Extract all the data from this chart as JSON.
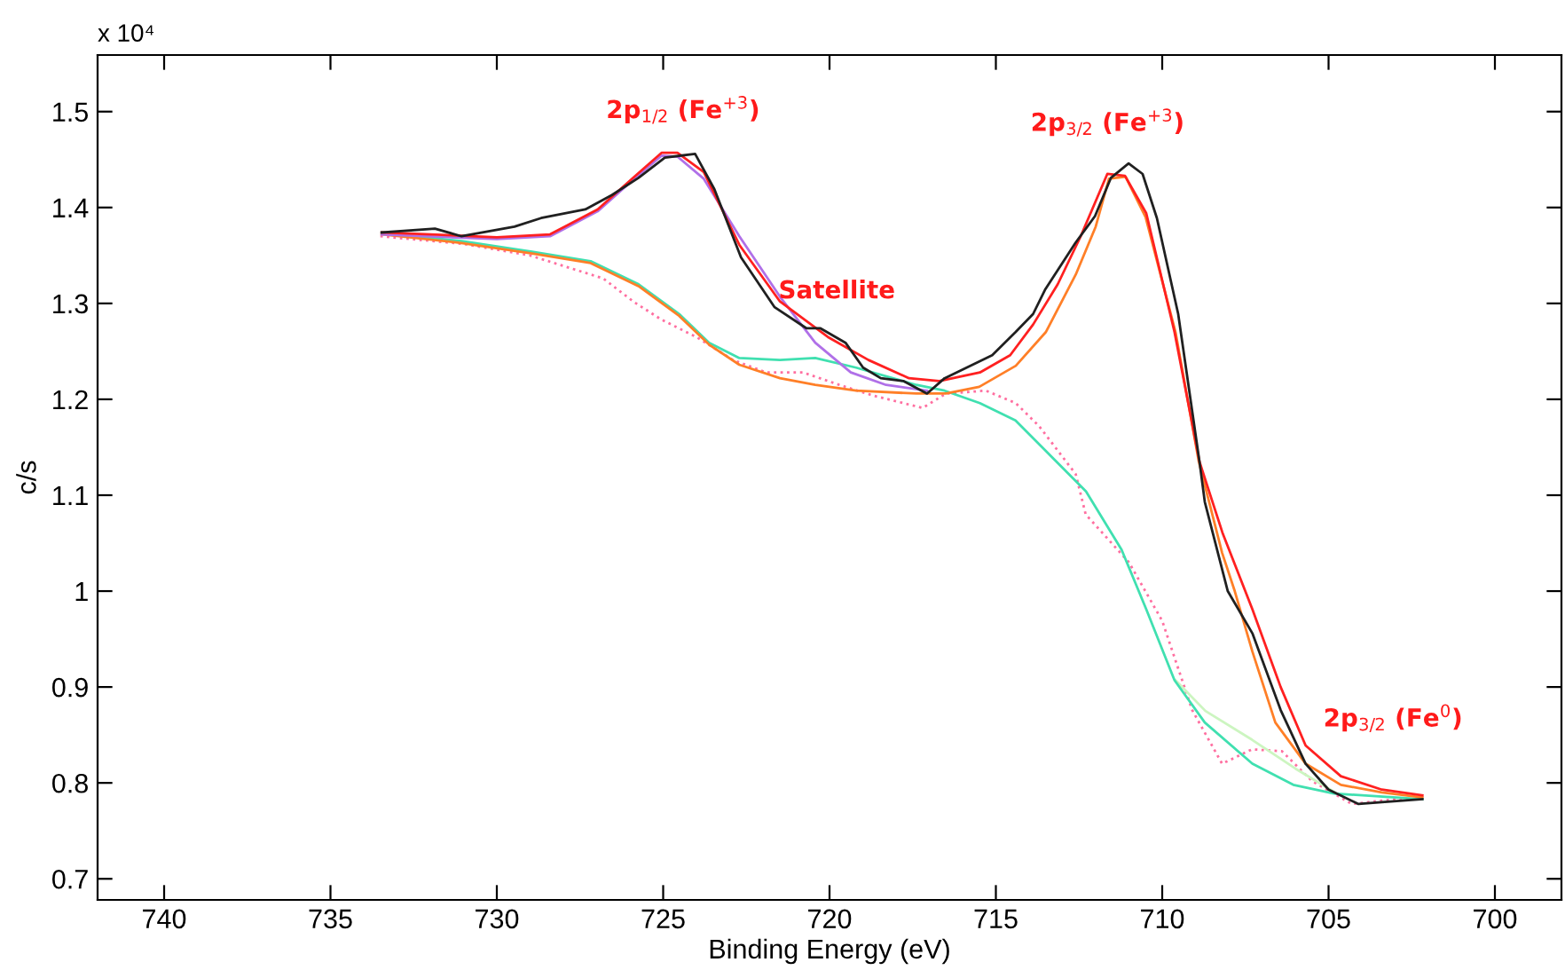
{
  "chart_data": {
    "type": "line",
    "xlabel": "Binding Energy (eV)",
    "ylabel": "c/s",
    "xlim": [
      742,
      698
    ],
    "ylim": [
      0.678,
      1.559
    ],
    "xticks": [
      740,
      735,
      730,
      725,
      720,
      715,
      710,
      705,
      700
    ],
    "yticks": [
      0.7,
      0.8,
      0.9,
      1,
      1.1,
      1.2,
      1.3,
      1.4,
      1.5
    ],
    "grid": false,
    "legend": false,
    "marker": "none",
    "annotations": [
      "x 10⁴",
      "2p$_{1/2}$ (Fe$^{+3}$)",
      "Satellite",
      "2p$_{3/2}$ (Fe$^{+3}$)",
      "2p$_{3/2}$ (Fe$^{0}$)"
    ],
    "series": [
      {
        "color": "#ff6fa0",
        "line_style": "dotted",
        "x": [
          733.5,
          731,
          729,
          726.8,
          725.9,
          725.05,
          724.0,
          722.9,
          721.9,
          720.8,
          719.7,
          718.7,
          717.2,
          716.5,
          715.3,
          714.4,
          713.7,
          712.6,
          712.3,
          711.0,
          710.0,
          709.1,
          708.2,
          707.3,
          706.4,
          705.5,
          704.3,
          703.0,
          702.2
        ],
        "values": [
          1.37,
          1.362,
          1.35,
          1.326,
          1.302,
          1.283,
          1.265,
          1.241,
          1.228,
          1.228,
          1.215,
          1.204,
          1.191,
          1.206,
          1.209,
          1.196,
          1.172,
          1.122,
          1.08,
          1.03,
          0.969,
          0.876,
          0.82,
          0.835,
          0.833,
          0.802,
          0.778,
          0.783,
          0.783
        ]
      },
      {
        "color": "#ccf5c0",
        "x": [
          709.6,
          708.7,
          707.3,
          706.0,
          704.8
        ],
        "values": [
          0.907,
          0.875,
          0.845,
          0.815,
          0.79
        ]
      },
      {
        "color": "#40e0b0",
        "x": [
          733.46,
          731.06,
          728.94,
          727.18,
          725.74,
          724.52,
          723.62,
          722.71,
          721.49,
          720.43,
          719.2,
          717.39,
          716.54,
          715.48,
          714.41,
          713.35,
          712.29,
          711.22,
          710.48,
          709.63,
          708.72,
          707.29,
          706.06,
          704.84,
          702.18
        ],
        "values": [
          1.374,
          1.365,
          1.354,
          1.344,
          1.32,
          1.289,
          1.259,
          1.243,
          1.241,
          1.243,
          1.233,
          1.215,
          1.209,
          1.196,
          1.178,
          1.141,
          1.104,
          1.043,
          0.981,
          0.907,
          0.863,
          0.82,
          0.798,
          0.789,
          0.783
        ]
      },
      {
        "color": "#ff7f27",
        "x": [
          733.46,
          731.06,
          728.94,
          727.18,
          725.74,
          724.52,
          723.62,
          722.71,
          721.49,
          720.43,
          719.2,
          717.39,
          716.5,
          715.5,
          714.4,
          713.5,
          712.6,
          712.0,
          711.6,
          711.1,
          710.5,
          709.6,
          708.9,
          708.2,
          707.82,
          707.29,
          706.6,
          705.69,
          704.63,
          703.4,
          702.18
        ],
        "values": [
          1.372,
          1.363,
          1.352,
          1.342,
          1.318,
          1.287,
          1.257,
          1.236,
          1.222,
          1.215,
          1.209,
          1.206,
          1.206,
          1.213,
          1.235,
          1.27,
          1.33,
          1.38,
          1.43,
          1.432,
          1.39,
          1.27,
          1.135,
          1.04,
          1.0,
          0.937,
          0.863,
          0.82,
          0.798,
          0.79,
          0.785
        ]
      },
      {
        "color": "#b070e8",
        "x": [
          733.46,
          730.0,
          728.4,
          726.97,
          725.9,
          725.05,
          724.57,
          723.78,
          722.71,
          721.49,
          720.43,
          719.36,
          718.3,
          717.07
        ],
        "values": [
          1.372,
          1.367,
          1.37,
          1.396,
          1.429,
          1.454,
          1.453,
          1.43,
          1.37,
          1.307,
          1.259,
          1.228,
          1.215,
          1.209
        ]
      },
      {
        "color": "#ff2020",
        "x": [
          733.46,
          730.0,
          728.4,
          726.97,
          725.9,
          725.05,
          724.57,
          723.78,
          722.71,
          721.49,
          720.05,
          718.83,
          717.61,
          716.7,
          715.48,
          714.57,
          713.88,
          713.14,
          712.45,
          711.65,
          711.12,
          710.48,
          709.63,
          708.88,
          708.19,
          707.29,
          706.44,
          705.69,
          704.63,
          703.4,
          702.18
        ],
        "values": [
          1.374,
          1.369,
          1.372,
          1.398,
          1.431,
          1.457,
          1.457,
          1.437,
          1.361,
          1.302,
          1.265,
          1.241,
          1.222,
          1.219,
          1.228,
          1.246,
          1.278,
          1.32,
          1.37,
          1.435,
          1.433,
          1.394,
          1.27,
          1.135,
          1.061,
          0.981,
          0.9,
          0.839,
          0.807,
          0.793,
          0.787
        ]
      },
      {
        "color": "#202020",
        "x": [
          733.46,
          731.86,
          731.06,
          729.47,
          728.67,
          727.34,
          726.54,
          725.74,
          724.95,
          724.04,
          723.46,
          722.66,
          721.65,
          720.69,
          720.27,
          719.52,
          718.99,
          718.46,
          717.77,
          717.07,
          716.54,
          715.11,
          714.41,
          713.88,
          713.51,
          712.61,
          712.02,
          711.54,
          711.01,
          710.59,
          710.16,
          709.52,
          708.88,
          708.72,
          708.03,
          707.29,
          706.44,
          705.69,
          705.0,
          704.1,
          703.4,
          702.18
        ],
        "values": [
          1.374,
          1.378,
          1.37,
          1.38,
          1.389,
          1.398,
          1.413,
          1.431,
          1.452,
          1.456,
          1.419,
          1.348,
          1.296,
          1.274,
          1.274,
          1.259,
          1.233,
          1.222,
          1.219,
          1.206,
          1.222,
          1.246,
          1.27,
          1.289,
          1.315,
          1.363,
          1.391,
          1.431,
          1.446,
          1.435,
          1.389,
          1.289,
          1.135,
          1.093,
          1.0,
          0.956,
          0.876,
          0.82,
          0.793,
          0.778,
          0.78,
          0.783
        ]
      }
    ]
  }
}
